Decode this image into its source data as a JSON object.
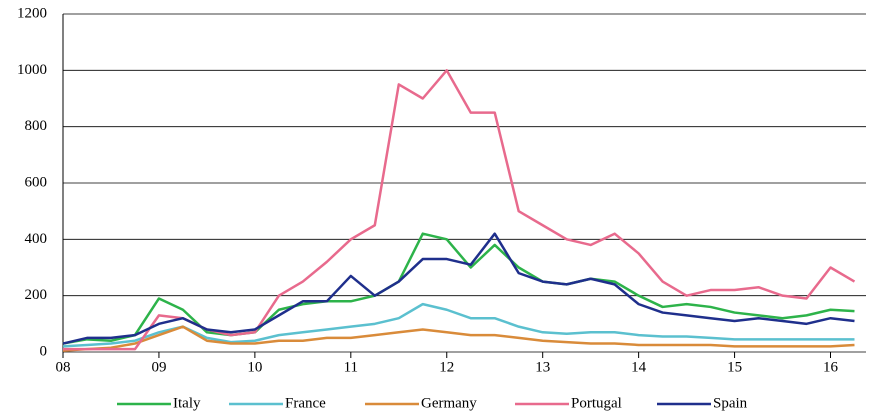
{
  "chart_data": {
    "type": "line",
    "x": [
      2008,
      2008.25,
      2008.5,
      2008.75,
      2009,
      2009.25,
      2009.5,
      2009.75,
      2010,
      2010.25,
      2010.5,
      2010.75,
      2011,
      2011.25,
      2011.5,
      2011.75,
      2012,
      2012.25,
      2012.5,
      2012.75,
      2013,
      2013.25,
      2013.5,
      2013.75,
      2014,
      2014.25,
      2014.5,
      2014.75,
      2015,
      2015.25,
      2015.5,
      2015.75,
      2016,
      2016.25
    ],
    "series": [
      {
        "name": "Italy",
        "color": "#2db34a",
        "values": [
          30,
          45,
          40,
          60,
          190,
          150,
          70,
          60,
          70,
          150,
          170,
          180,
          180,
          200,
          250,
          420,
          400,
          300,
          380,
          300,
          250,
          240,
          260,
          250,
          200,
          160,
          170,
          160,
          140,
          130,
          120,
          130,
          150,
          145
        ]
      },
      {
        "name": "France",
        "color": "#5bc0cf",
        "values": [
          20,
          25,
          30,
          40,
          70,
          90,
          50,
          35,
          40,
          60,
          70,
          80,
          90,
          100,
          120,
          170,
          150,
          120,
          120,
          90,
          70,
          65,
          70,
          70,
          60,
          55,
          55,
          50,
          45,
          45,
          45,
          45,
          45,
          45
        ]
      },
      {
        "name": "Germany",
        "color": "#d98b3a",
        "values": [
          5,
          10,
          15,
          30,
          60,
          90,
          40,
          30,
          30,
          40,
          40,
          50,
          50,
          60,
          70,
          80,
          70,
          60,
          60,
          50,
          40,
          35,
          30,
          30,
          25,
          25,
          25,
          25,
          20,
          20,
          20,
          20,
          20,
          25
        ]
      },
      {
        "name": "Portugal",
        "color": "#e86a8d",
        "values": [
          10,
          10,
          10,
          10,
          130,
          120,
          80,
          60,
          70,
          200,
          250,
          320,
          400,
          450,
          950,
          900,
          1000,
          850,
          850,
          500,
          450,
          400,
          380,
          420,
          350,
          250,
          200,
          220,
          220,
          230,
          200,
          190,
          300,
          250
        ]
      },
      {
        "name": "Spain",
        "color": "#1f2f8c",
        "values": [
          30,
          50,
          50,
          60,
          100,
          120,
          80,
          70,
          80,
          130,
          180,
          180,
          270,
          200,
          250,
          330,
          330,
          310,
          420,
          280,
          250,
          240,
          260,
          240,
          170,
          140,
          130,
          120,
          110,
          120,
          110,
          100,
          120,
          110
        ]
      }
    ],
    "xlim": [
      2008,
      2016.37
    ],
    "xticks": [
      {
        "value": 2008,
        "label": "08"
      },
      {
        "value": 2009,
        "label": "09"
      },
      {
        "value": 2010,
        "label": "10"
      },
      {
        "value": 2011,
        "label": "11"
      },
      {
        "value": 2012,
        "label": "12"
      },
      {
        "value": 2013,
        "label": "13"
      },
      {
        "value": 2014,
        "label": "14"
      },
      {
        "value": 2015,
        "label": "15"
      },
      {
        "value": 2016,
        "label": "16"
      }
    ],
    "ylim": [
      0,
      1200
    ],
    "yticks": [
      0,
      200,
      400,
      600,
      800,
      1000,
      1200
    ],
    "grid": true
  }
}
